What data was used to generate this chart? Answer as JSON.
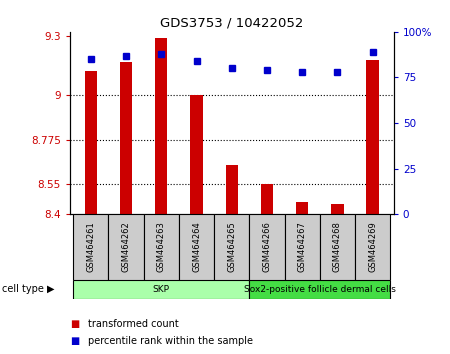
{
  "title": "GDS3753 / 10422052",
  "samples": [
    "GSM464261",
    "GSM464262",
    "GSM464263",
    "GSM464264",
    "GSM464265",
    "GSM464266",
    "GSM464267",
    "GSM464268",
    "GSM464269"
  ],
  "transformed_count": [
    9.12,
    9.17,
    9.29,
    9.0,
    8.65,
    8.55,
    8.46,
    8.45,
    9.18
  ],
  "percentile_rank": [
    85,
    87,
    88,
    84,
    80,
    79,
    78,
    78,
    89
  ],
  "y_min": 8.4,
  "y_max": 9.32,
  "y_ticks": [
    8.4,
    8.55,
    8.775,
    9.0,
    9.3
  ],
  "y_tick_labels": [
    "8.4",
    "8.55",
    "8.775",
    "9",
    "9.3"
  ],
  "right_y_ticks": [
    0,
    25,
    50,
    75,
    100
  ],
  "right_y_tick_labels": [
    "0",
    "25",
    "50",
    "75",
    "100%"
  ],
  "bar_color": "#cc0000",
  "marker_color": "#0000cc",
  "bar_baseline": 8.4,
  "grid_lines": [
    9.0,
    8.775,
    8.55
  ],
  "cell_type_groups": [
    {
      "label": "SKP",
      "start": 0,
      "end": 4,
      "color": "#aaffaa"
    },
    {
      "label": "Sox2-positive follicle dermal cells",
      "start": 5,
      "end": 8,
      "color": "#44dd44"
    }
  ],
  "cell_type_label": "cell type",
  "legend": [
    {
      "label": "transformed count",
      "color": "#cc0000"
    },
    {
      "label": "percentile rank within the sample",
      "color": "#0000cc"
    }
  ],
  "bar_width": 0.35,
  "background_color": "#ffffff",
  "sample_label_bg": "#cccccc"
}
